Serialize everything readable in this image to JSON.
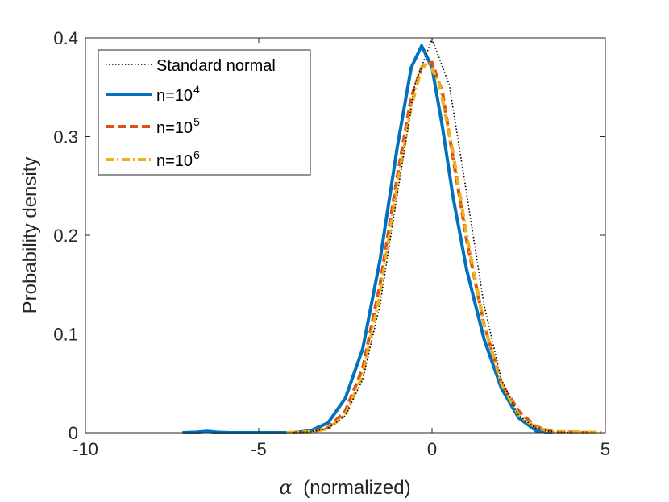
{
  "chart_data": {
    "type": "line",
    "xlabel": {
      "symbol": "α",
      "text": "(normalized)"
    },
    "ylabel": "Probability density",
    "xlim": [
      -10,
      5
    ],
    "ylim": [
      0,
      0.4
    ],
    "xticks": [
      -10,
      -5,
      0,
      5
    ],
    "xtick_labels": [
      "-10",
      "-5",
      "0",
      "5"
    ],
    "yticks": [
      0,
      0.1,
      0.2,
      0.3,
      0.4
    ],
    "ytick_labels": [
      "0",
      "0.1",
      "0.2",
      "0.3",
      "0.4"
    ],
    "grid": false,
    "legend_position": "top-left",
    "series": [
      {
        "name": "Standard normal",
        "legend": {
          "base": "Standard normal",
          "sup": ""
        },
        "color": "#000000",
        "style": "dotted",
        "points": [
          [
            -4.0,
            0.0001
          ],
          [
            -3.5,
            0.0009
          ],
          [
            -3.0,
            0.0044
          ],
          [
            -2.5,
            0.0175
          ],
          [
            -2.0,
            0.054
          ],
          [
            -1.5,
            0.1295
          ],
          [
            -1.0,
            0.242
          ],
          [
            -0.5,
            0.3521
          ],
          [
            0.0,
            0.3989
          ],
          [
            0.5,
            0.3521
          ],
          [
            1.0,
            0.242
          ],
          [
            1.5,
            0.1295
          ],
          [
            2.0,
            0.054
          ],
          [
            2.5,
            0.0175
          ],
          [
            3.0,
            0.0044
          ],
          [
            3.5,
            0.0009
          ],
          [
            4.0,
            0.0001
          ]
        ]
      },
      {
        "name": "n=10^4",
        "legend": {
          "base": "n=10",
          "sup": "4"
        },
        "color": "#0072BD",
        "style": "solid",
        "points": [
          [
            -7.2,
            0.0
          ],
          [
            -6.8,
            0.0005
          ],
          [
            -6.5,
            0.0015
          ],
          [
            -6.2,
            0.0005
          ],
          [
            -5.8,
            0.0
          ],
          [
            -4.0,
            0.0
          ],
          [
            -3.5,
            0.002
          ],
          [
            -3.0,
            0.01
          ],
          [
            -2.5,
            0.035
          ],
          [
            -2.0,
            0.085
          ],
          [
            -1.5,
            0.175
          ],
          [
            -1.0,
            0.29
          ],
          [
            -0.6,
            0.37
          ],
          [
            -0.3,
            0.392
          ],
          [
            0.0,
            0.37
          ],
          [
            0.3,
            0.31
          ],
          [
            0.6,
            0.24
          ],
          [
            1.0,
            0.165
          ],
          [
            1.5,
            0.095
          ],
          [
            2.0,
            0.045
          ],
          [
            2.5,
            0.015
          ],
          [
            3.0,
            0.002
          ],
          [
            3.5,
            0.0
          ]
        ]
      },
      {
        "name": "n=10^5",
        "legend": {
          "base": "n=10",
          "sup": "5"
        },
        "color": "#D95319",
        "style": "dashed",
        "points": [
          [
            -4.1,
            0.0
          ],
          [
            -3.5,
            0.001
          ],
          [
            -3.0,
            0.005
          ],
          [
            -2.5,
            0.022
          ],
          [
            -2.0,
            0.065
          ],
          [
            -1.5,
            0.15
          ],
          [
            -1.0,
            0.26
          ],
          [
            -0.6,
            0.34
          ],
          [
            -0.3,
            0.37
          ],
          [
            0.0,
            0.375
          ],
          [
            0.3,
            0.345
          ],
          [
            0.6,
            0.28
          ],
          [
            1.0,
            0.195
          ],
          [
            1.5,
            0.11
          ],
          [
            2.0,
            0.05
          ],
          [
            2.5,
            0.022
          ],
          [
            3.0,
            0.006
          ],
          [
            3.5,
            0.001
          ],
          [
            4.0,
            0.0005
          ],
          [
            4.5,
            0.0
          ]
        ]
      },
      {
        "name": "n=10^6",
        "legend": {
          "base": "n=10",
          "sup": "6"
        },
        "color": "#EDB120",
        "style": "dashdot",
        "points": [
          [
            -4.2,
            0.0
          ],
          [
            -3.5,
            0.001
          ],
          [
            -3.0,
            0.004
          ],
          [
            -2.5,
            0.018
          ],
          [
            -2.0,
            0.058
          ],
          [
            -1.5,
            0.14
          ],
          [
            -1.0,
            0.25
          ],
          [
            -0.6,
            0.33
          ],
          [
            -0.3,
            0.37
          ],
          [
            -0.1,
            0.375
          ],
          [
            0.2,
            0.355
          ],
          [
            0.6,
            0.285
          ],
          [
            1.0,
            0.2
          ],
          [
            1.5,
            0.11
          ],
          [
            2.0,
            0.05
          ],
          [
            2.5,
            0.018
          ],
          [
            3.0,
            0.005
          ],
          [
            3.5,
            0.001
          ],
          [
            4.0,
            0.001
          ],
          [
            4.5,
            0.0005
          ],
          [
            5.0,
            0.0
          ]
        ]
      }
    ]
  }
}
